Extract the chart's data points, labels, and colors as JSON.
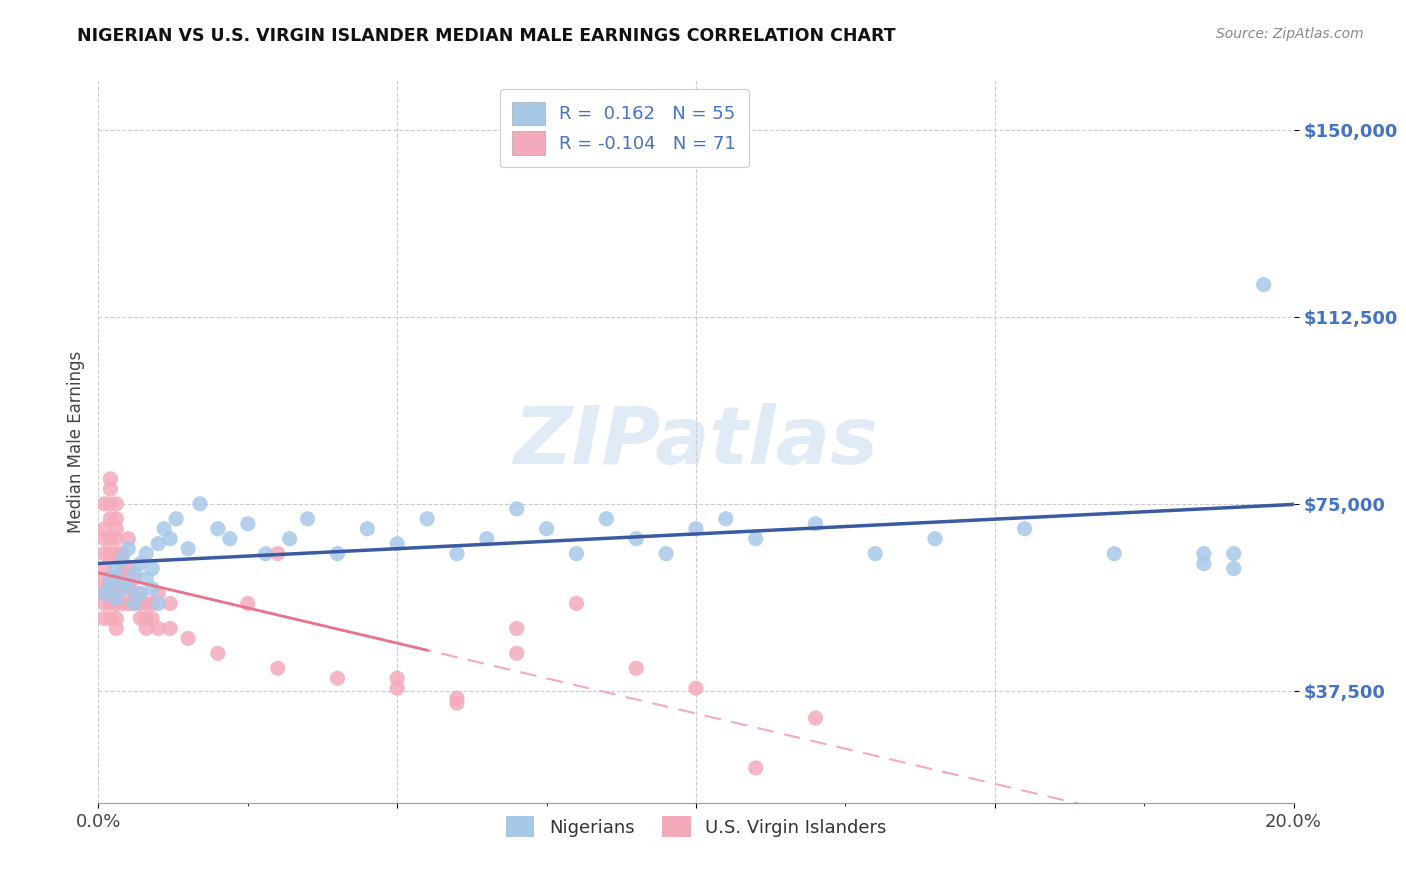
{
  "title": "NIGERIAN VS U.S. VIRGIN ISLANDER MEDIAN MALE EARNINGS CORRELATION CHART",
  "source": "Source: ZipAtlas.com",
  "ylabel_label": "Median Male Earnings",
  "x_min": 0.0,
  "x_max": 0.2,
  "y_min": 15000,
  "y_max": 160000,
  "y_ticks": [
    37500,
    75000,
    112500,
    150000
  ],
  "y_tick_labels": [
    "$37,500",
    "$75,000",
    "$112,500",
    "$150,000"
  ],
  "nigerian_color": "#A8C8E8",
  "virgin_islander_color": "#F4AABB",
  "nigerian_R": 0.162,
  "nigerian_N": 55,
  "virgin_islander_R": -0.104,
  "virgin_islander_N": 71,
  "nigerian_line_color": "#3A5BA0",
  "virgin_islander_solid_color": "#E8738A",
  "virgin_islander_dash_color": "#F4AABB",
  "watermark": "ZIPatlas",
  "legend_label_nigerian": "Nigerians",
  "legend_label_virgin": "U.S. Virgin Islanders",
  "nigerian_scatter_x": [
    0.001,
    0.002,
    0.002,
    0.003,
    0.003,
    0.004,
    0.004,
    0.005,
    0.005,
    0.006,
    0.006,
    0.007,
    0.007,
    0.008,
    0.008,
    0.009,
    0.009,
    0.01,
    0.01,
    0.011,
    0.012,
    0.013,
    0.015,
    0.017,
    0.02,
    0.022,
    0.025,
    0.028,
    0.032,
    0.035,
    0.04,
    0.045,
    0.05,
    0.055,
    0.06,
    0.065,
    0.07,
    0.075,
    0.08,
    0.085,
    0.09,
    0.095,
    0.1,
    0.105,
    0.11,
    0.12,
    0.13,
    0.14,
    0.155,
    0.17,
    0.185,
    0.19,
    0.195,
    0.19,
    0.185
  ],
  "nigerian_scatter_y": [
    57000,
    60000,
    58000,
    62000,
    56000,
    59000,
    64000,
    58000,
    66000,
    61000,
    55000,
    63000,
    57000,
    60000,
    65000,
    58000,
    62000,
    67000,
    55000,
    70000,
    68000,
    72000,
    66000,
    75000,
    70000,
    68000,
    71000,
    65000,
    68000,
    72000,
    65000,
    70000,
    67000,
    72000,
    65000,
    68000,
    74000,
    70000,
    65000,
    72000,
    68000,
    65000,
    70000,
    72000,
    68000,
    71000,
    65000,
    68000,
    70000,
    65000,
    63000,
    65000,
    119000,
    62000,
    65000
  ],
  "virgin_scatter_x": [
    0.001,
    0.001,
    0.001,
    0.001,
    0.001,
    0.001,
    0.001,
    0.001,
    0.001,
    0.001,
    0.002,
    0.002,
    0.002,
    0.002,
    0.002,
    0.002,
    0.002,
    0.002,
    0.002,
    0.002,
    0.003,
    0.003,
    0.003,
    0.003,
    0.003,
    0.003,
    0.003,
    0.003,
    0.003,
    0.003,
    0.004,
    0.004,
    0.004,
    0.004,
    0.004,
    0.005,
    0.005,
    0.005,
    0.005,
    0.006,
    0.006,
    0.006,
    0.007,
    0.007,
    0.007,
    0.008,
    0.008,
    0.008,
    0.009,
    0.009,
    0.01,
    0.01,
    0.012,
    0.012,
    0.015,
    0.02,
    0.03,
    0.04,
    0.05,
    0.06,
    0.07,
    0.09,
    0.1,
    0.11,
    0.12,
    0.05,
    0.06,
    0.07,
    0.08,
    0.03,
    0.025
  ],
  "virgin_scatter_y": [
    75000,
    70000,
    68000,
    65000,
    60000,
    58000,
    55000,
    57000,
    62000,
    52000,
    78000,
    72000,
    68000,
    65000,
    60000,
    57000,
    55000,
    52000,
    75000,
    80000,
    70000,
    68000,
    65000,
    60000,
    57000,
    55000,
    52000,
    50000,
    72000,
    75000,
    65000,
    62000,
    58000,
    55000,
    60000,
    68000,
    62000,
    58000,
    55000,
    60000,
    57000,
    55000,
    55000,
    52000,
    57000,
    55000,
    52000,
    50000,
    52000,
    55000,
    57000,
    50000,
    55000,
    50000,
    48000,
    45000,
    42000,
    40000,
    38000,
    36000,
    50000,
    42000,
    38000,
    22000,
    32000,
    40000,
    35000,
    45000,
    55000,
    65000,
    55000
  ]
}
